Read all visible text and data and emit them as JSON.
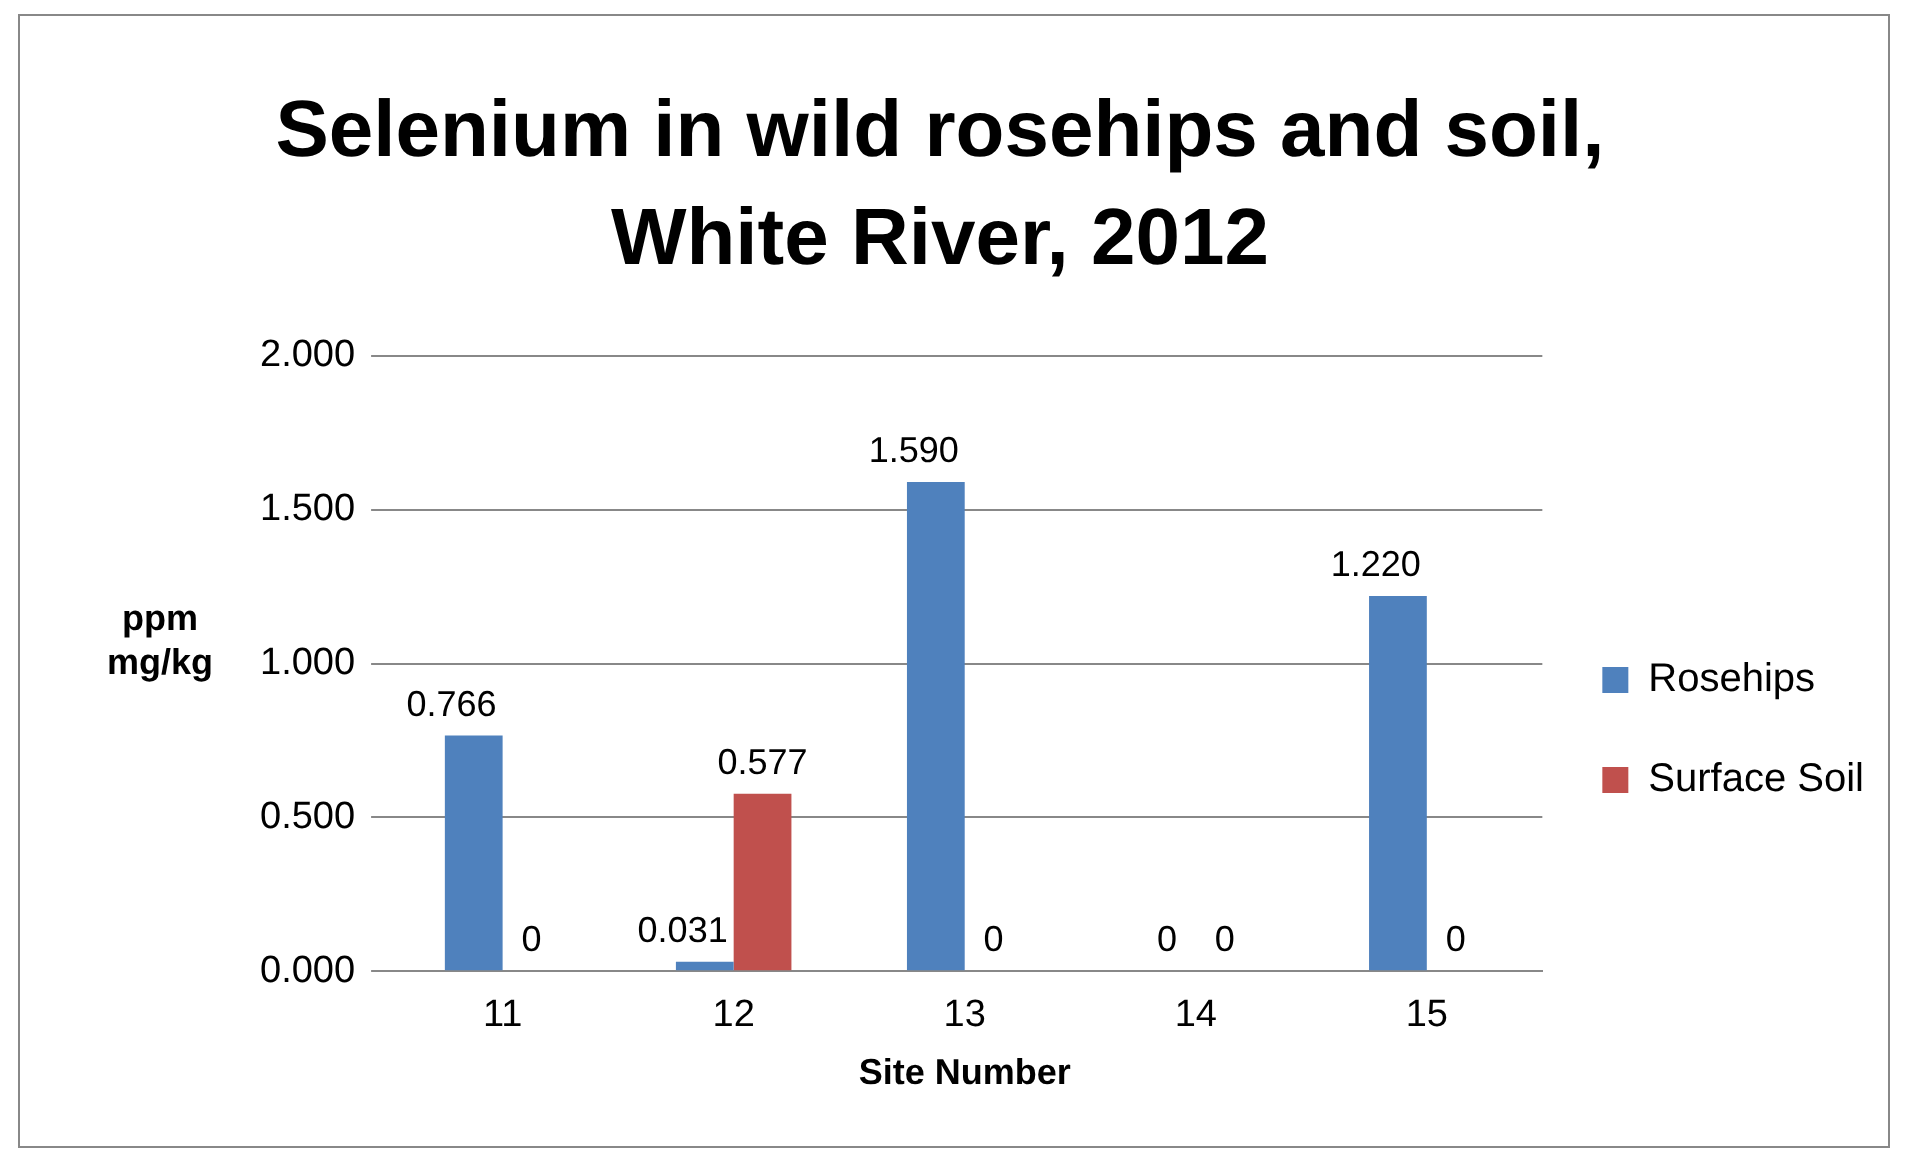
{
  "chart_data": {
    "type": "bar",
    "title": "Selenium in wild rosehips and soil, White River, 2012",
    "xlabel": "Site Number",
    "ylabel": "ppm mg/kg",
    "categories": [
      "11",
      "12",
      "13",
      "14",
      "15"
    ],
    "series": [
      {
        "name": "Rosehips",
        "color": "#4f81bd",
        "values": [
          0.766,
          0.031,
          1.59,
          0,
          1.22
        ],
        "value_labels": [
          "0.766",
          "0.031",
          "1.590",
          "0",
          "1.220"
        ]
      },
      {
        "name": "Surface Soil",
        "color": "#c0504d",
        "values": [
          0,
          0.577,
          0,
          0,
          0
        ],
        "value_labels": [
          "0",
          "0.577",
          "0",
          "0",
          "0"
        ]
      }
    ],
    "ylim": [
      0,
      2
    ],
    "yticks": [
      {
        "value": 0,
        "label": "0.000"
      },
      {
        "value": 0.5,
        "label": "0.500"
      },
      {
        "value": 1,
        "label": "1.000"
      },
      {
        "value": 1.5,
        "label": "1.500"
      },
      {
        "value": 2,
        "label": "2.000"
      }
    ],
    "grid": "y",
    "legend": "right",
    "data_labels": false
  }
}
